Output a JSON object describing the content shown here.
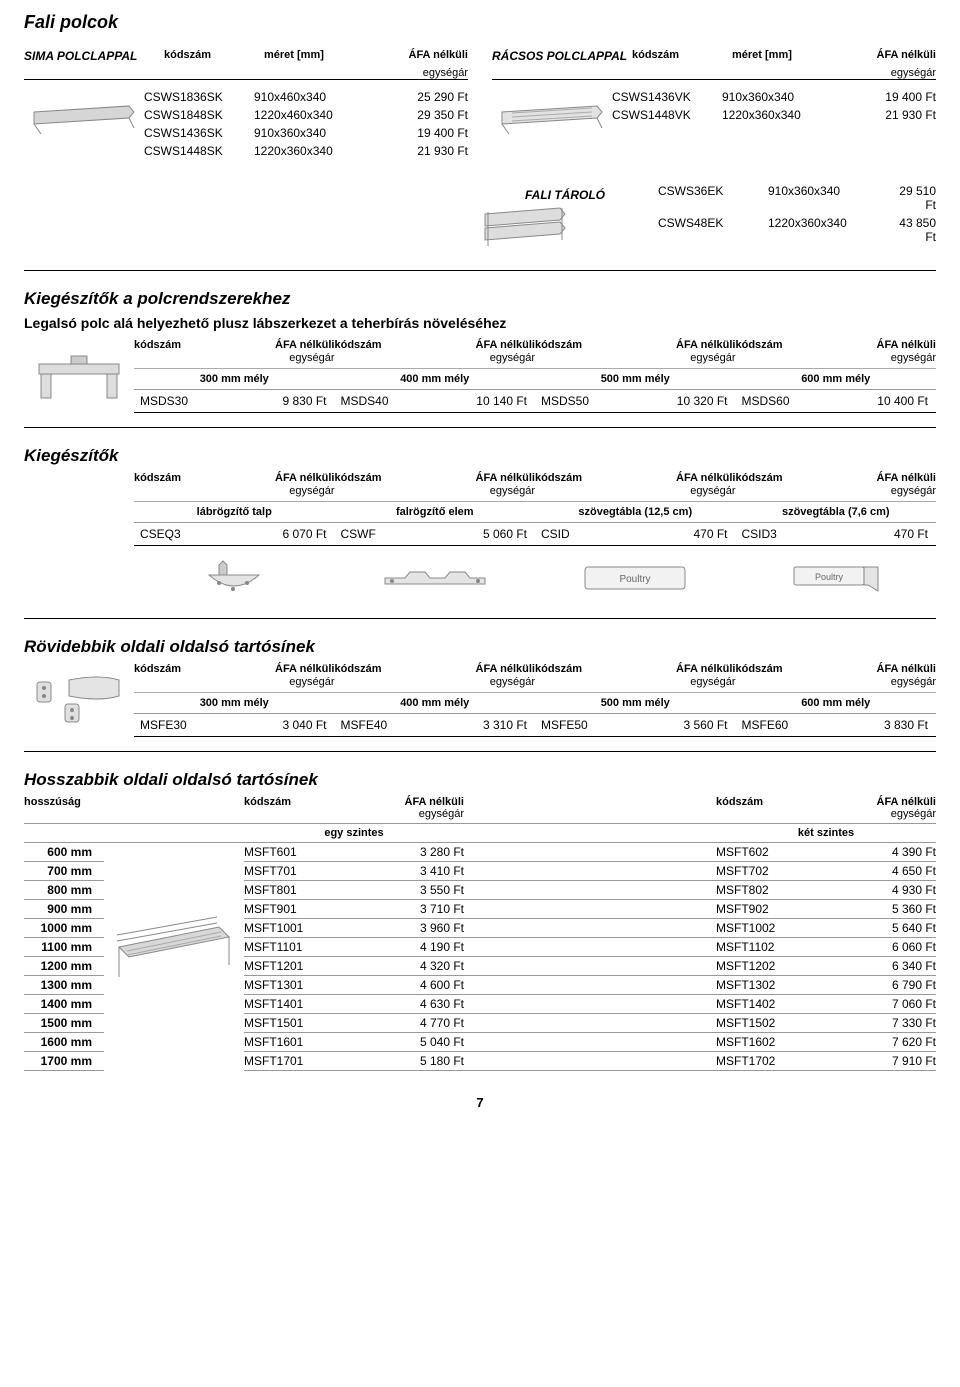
{
  "page_number": "7",
  "fali_polcok": {
    "title": "Fali polcok",
    "header_labels": {
      "kod": "kódszám",
      "meret": "méret [mm]",
      "afa": "ÁFA nélküli",
      "egysegar": "egységár"
    },
    "sima": {
      "label": "SIMA POLCLAPPAL",
      "rows": [
        {
          "kod": "CSWS1836SK",
          "meret": "910x460x340",
          "ar": "25 290 Ft"
        },
        {
          "kod": "CSWS1848SK",
          "meret": "1220x460x340",
          "ar": "29 350 Ft"
        },
        {
          "kod": "CSWS1436SK",
          "meret": "910x360x340",
          "ar": "19 400 Ft"
        },
        {
          "kod": "CSWS1448SK",
          "meret": "1220x360x340",
          "ar": "21 930 Ft"
        }
      ]
    },
    "racsos": {
      "label": "RÁCSOS POLCLAPPAL",
      "rows": [
        {
          "kod": "CSWS1436VK",
          "meret": "910x360x340",
          "ar": "19 400 Ft"
        },
        {
          "kod": "CSWS1448VK",
          "meret": "1220x360x340",
          "ar": "21 930 Ft"
        }
      ]
    },
    "tarolo": {
      "label": "FALI TÁROLÓ",
      "rows": [
        {
          "kod": "CSWS36EK",
          "meret": "910x360x340",
          "ar": "29 510 Ft"
        },
        {
          "kod": "CSWS48EK",
          "meret": "1220x360x340",
          "ar": "43 850 Ft"
        }
      ]
    }
  },
  "kieg_polc": {
    "title": "Kiegészítők a polcrendszerekhez",
    "subtitle": "Legalsó polc alá helyezhető plusz lábszerkezet a teherbírás növeléséhez",
    "header_labels": {
      "kod": "kódszám",
      "afa": "ÁFA nélküli",
      "egysegar": "egységár"
    },
    "cols": [
      {
        "cat": "300 mm mély",
        "kod": "MSDS30",
        "ar": "9 830 Ft"
      },
      {
        "cat": "400 mm mély",
        "kod": "MSDS40",
        "ar": "10 140 Ft"
      },
      {
        "cat": "500 mm mély",
        "kod": "MSDS50",
        "ar": "10 320 Ft"
      },
      {
        "cat": "600 mm mély",
        "kod": "MSDS60",
        "ar": "10 400 Ft"
      }
    ]
  },
  "kieg": {
    "title": "Kiegészítők",
    "header_labels": {
      "kod": "kódszám",
      "afa": "ÁFA nélküli",
      "egysegar": "egységár"
    },
    "cols": [
      {
        "cat": "lábrögzítő talp",
        "kod": "CSEQ3",
        "ar": "6 070 Ft"
      },
      {
        "cat": "falrögzítő elem",
        "kod": "CSWF",
        "ar": "5 060 Ft"
      },
      {
        "cat": "szövegtábla (12,5 cm)",
        "kod": "CSID",
        "ar": "470 Ft"
      },
      {
        "cat": "szövegtábla (7,6 cm)",
        "kod": "CSID3",
        "ar": "470 Ft"
      }
    ],
    "poultry_label": "Poultry"
  },
  "rovid": {
    "title": "Rövidebbik oldali oldalsó tartósínek",
    "header_labels": {
      "kod": "kódszám",
      "afa": "ÁFA nélküli",
      "egysegar": "egységár"
    },
    "cols": [
      {
        "cat": "300 mm mély",
        "kod": "MSFE30",
        "ar": "3 040 Ft"
      },
      {
        "cat": "400 mm mély",
        "kod": "MSFE40",
        "ar": "3 310 Ft"
      },
      {
        "cat": "500 mm mély",
        "kod": "MSFE50",
        "ar": "3 560 Ft"
      },
      {
        "cat": "600 mm mély",
        "kod": "MSFE60",
        "ar": "3 830 Ft"
      }
    ]
  },
  "hossz": {
    "title": "Hosszabbik oldali oldalsó tartósínek",
    "header_labels": {
      "hossz": "hosszúság",
      "kod": "kódszám",
      "afa": "ÁFA nélküli",
      "egysegar": "egységár",
      "egy": "egy szintes",
      "ket": "két szintes"
    },
    "rows": [
      {
        "len": "600 mm",
        "k1": "MSFT601",
        "a1": "3 280 Ft",
        "k2": "MSFT602",
        "a2": "4 390 Ft"
      },
      {
        "len": "700 mm",
        "k1": "MSFT701",
        "a1": "3 410 Ft",
        "k2": "MSFT702",
        "a2": "4 650 Ft"
      },
      {
        "len": "800 mm",
        "k1": "MSFT801",
        "a1": "3 550 Ft",
        "k2": "MSFT802",
        "a2": "4 930 Ft"
      },
      {
        "len": "900 mm",
        "k1": "MSFT901",
        "a1": "3 710 Ft",
        "k2": "MSFT902",
        "a2": "5 360 Ft"
      },
      {
        "len": "1000 mm",
        "k1": "MSFT1001",
        "a1": "3 960 Ft",
        "k2": "MSFT1002",
        "a2": "5 640 Ft"
      },
      {
        "len": "1100 mm",
        "k1": "MSFT1101",
        "a1": "4 190 Ft",
        "k2": "MSFT1102",
        "a2": "6 060 Ft"
      },
      {
        "len": "1200 mm",
        "k1": "MSFT1201",
        "a1": "4 320 Ft",
        "k2": "MSFT1202",
        "a2": "6 340 Ft"
      },
      {
        "len": "1300 mm",
        "k1": "MSFT1301",
        "a1": "4 600 Ft",
        "k2": "MSFT1302",
        "a2": "6 790 Ft"
      },
      {
        "len": "1400 mm",
        "k1": "MSFT1401",
        "a1": "4 630 Ft",
        "k2": "MSFT1402",
        "a2": "7 060 Ft"
      },
      {
        "len": "1500 mm",
        "k1": "MSFT1501",
        "a1": "4 770 Ft",
        "k2": "MSFT1502",
        "a2": "7 330 Ft"
      },
      {
        "len": "1600 mm",
        "k1": "MSFT1601",
        "a1": "5 040 Ft",
        "k2": "MSFT1602",
        "a2": "7 620 Ft"
      },
      {
        "len": "1700 mm",
        "k1": "MSFT1701",
        "a1": "5 180 Ft",
        "k2": "MSFT1702",
        "a2": "7 910 Ft"
      }
    ]
  }
}
